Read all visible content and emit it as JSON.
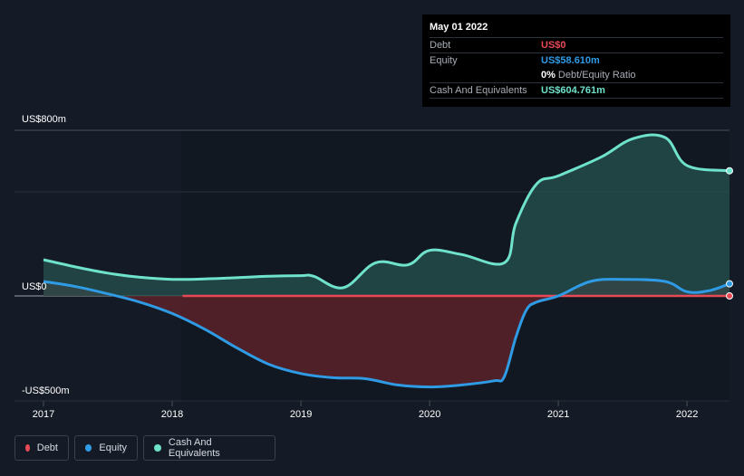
{
  "tooltip": {
    "date": "May 01 2022",
    "debt_label": "Debt",
    "debt_value": "US$0",
    "equity_label": "Equity",
    "equity_value": "US$58.610m",
    "ratio_pct": "0%",
    "ratio_text": "Debt/Equity Ratio",
    "cash_label": "Cash And Equivalents",
    "cash_value": "US$604.761m"
  },
  "legend": {
    "debt": "Debt",
    "equity": "Equity",
    "cash": "Cash And Equivalents"
  },
  "colors": {
    "debt": "#e84a55",
    "equity": "#2f9be4",
    "cash": "#6fe2cc",
    "background": "#151b26"
  },
  "chart_data": {
    "type": "area",
    "xlim": [
      2017.0,
      2022.33
    ],
    "ylim": [
      -500,
      800
    ],
    "y_tick_labels": [
      "US$800m",
      "US$0",
      "-US$500m"
    ],
    "x_tick_labels": [
      "2017",
      "2018",
      "2019",
      "2020",
      "2021",
      "2022"
    ],
    "series": [
      {
        "name": "Debt",
        "x": [
          2018.08,
          2022.33
        ],
        "values": [
          0,
          0
        ]
      },
      {
        "name": "Equity",
        "x": [
          2017.0,
          2017.25,
          2017.5,
          2017.75,
          2018.0,
          2018.25,
          2018.5,
          2018.75,
          2019.0,
          2019.25,
          2019.5,
          2019.75,
          2020.0,
          2020.25,
          2020.5,
          2020.58,
          2020.67,
          2020.75,
          2020.83,
          2021.0,
          2021.25,
          2021.5,
          2021.83,
          2022.0,
          2022.17,
          2022.33
        ],
        "values": [
          70,
          45,
          10,
          -30,
          -85,
          -160,
          -250,
          -330,
          -375,
          -395,
          -400,
          -430,
          -440,
          -430,
          -410,
          -390,
          -200,
          -70,
          -30,
          0,
          70,
          80,
          70,
          20,
          25,
          58.61
        ]
      },
      {
        "name": "Cash And Equivalents",
        "x": [
          2017.0,
          2017.25,
          2017.5,
          2017.75,
          2018.0,
          2018.25,
          2018.5,
          2018.75,
          2019.0,
          2019.1,
          2019.33,
          2019.58,
          2019.83,
          2020.0,
          2020.25,
          2020.58,
          2020.67,
          2020.83,
          2021.0,
          2021.33,
          2021.58,
          2021.83,
          2022.0,
          2022.33
        ],
        "values": [
          175,
          140,
          110,
          90,
          80,
          82,
          88,
          95,
          98,
          95,
          40,
          160,
          150,
          220,
          200,
          160,
          350,
          540,
          580,
          670,
          760,
          765,
          630,
          604.761
        ]
      }
    ]
  }
}
